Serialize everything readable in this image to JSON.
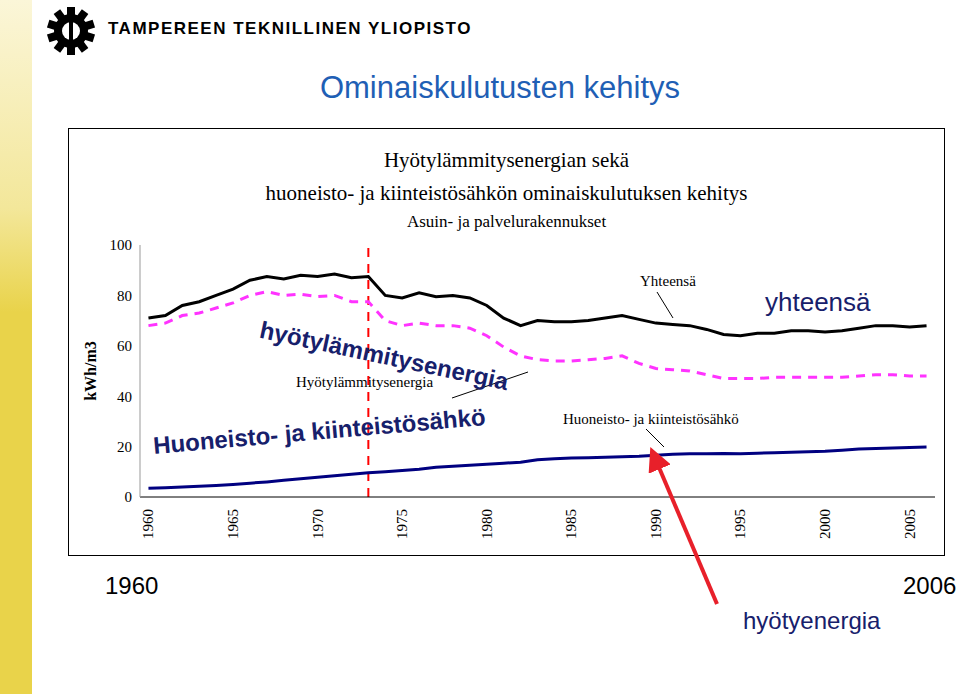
{
  "header": {
    "institution": "TAMPEREEN TEKNILLINEN YLIOPISTO",
    "title": "Ominaiskulutusten kehitys"
  },
  "chart_data": {
    "type": "line",
    "title": [
      "Hyötylämmitysenergian sekä",
      "huoneisto- ja kiinteistösähkön ominaiskulutuksen kehitys"
    ],
    "subtitle": "Asuin- ja palvelurakennukset",
    "ylabel": "kWh/m3",
    "x": [
      1960,
      1961,
      1962,
      1963,
      1964,
      1965,
      1966,
      1967,
      1968,
      1969,
      1970,
      1971,
      1972,
      1973,
      1974,
      1975,
      1976,
      1977,
      1978,
      1979,
      1980,
      1981,
      1982,
      1983,
      1984,
      1985,
      1986,
      1987,
      1988,
      1989,
      1990,
      1991,
      1992,
      1993,
      1994,
      1995,
      1996,
      1997,
      1998,
      1999,
      2000,
      2001,
      2002,
      2003,
      2004,
      2005,
      2006
    ],
    "xlim": [
      1959.5,
      2006.5
    ],
    "xticks": [
      1960,
      1965,
      1970,
      1975,
      1980,
      1985,
      1990,
      1995,
      2000,
      2005
    ],
    "ylim": [
      0,
      100
    ],
    "yticks": [
      0,
      20,
      40,
      60,
      80,
      100
    ],
    "grid": false,
    "series": [
      {
        "name": "Yhteensä",
        "color": "#000000",
        "line_style": "solid",
        "values": [
          71,
          72,
          76,
          77.5,
          80,
          82.5,
          86,
          87.5,
          86.5,
          88,
          87.5,
          88.5,
          87,
          87.5,
          80,
          79,
          81,
          79.5,
          80,
          79,
          76,
          71,
          68,
          70,
          69.5,
          69.5,
          70,
          71,
          72,
          70.5,
          69,
          68.5,
          68,
          66.5,
          64.5,
          64,
          65,
          65,
          66,
          66,
          65.5,
          66,
          67,
          68,
          68,
          67.5,
          68
        ]
      },
      {
        "name": "Hyötylämmitysenergia",
        "color": "#ff33ff",
        "line_style": "dashed",
        "values": [
          68,
          69,
          72,
          73,
          75,
          77,
          80,
          81.5,
          80,
          80.5,
          79.5,
          80,
          77.5,
          77.5,
          70,
          68,
          69,
          68,
          68,
          67,
          64,
          59.5,
          56,
          54.5,
          54,
          54,
          54.5,
          55,
          56,
          53,
          51,
          50.5,
          50,
          48.5,
          47,
          47,
          47,
          47.5,
          47.5,
          47.5,
          47.5,
          47.5,
          48,
          48.5,
          48.5,
          48,
          48
        ]
      },
      {
        "name": "Huoneisto- ja kiinteistösähkö",
        "color": "#000080",
        "line_style": "solid",
        "values": [
          3.5,
          3.7,
          4.0,
          4.3,
          4.6,
          5.0,
          5.5,
          6.0,
          6.6,
          7.2,
          7.8,
          8.4,
          9.0,
          9.6,
          10.0,
          10.5,
          11.0,
          11.8,
          12.2,
          12.6,
          13.0,
          13.4,
          13.8,
          14.8,
          15.2,
          15.5,
          15.6,
          15.8,
          16.0,
          16.2,
          16.6,
          17.0,
          17.2,
          17.2,
          17.3,
          17.2,
          17.4,
          17.6,
          17.8,
          18.0,
          18.2,
          18.6,
          19.0,
          19.2,
          19.4,
          19.6,
          19.8
        ]
      }
    ],
    "vertical_line": {
      "x": 1973,
      "color": "#ff0000",
      "line_style": "dashed"
    },
    "annotations": [
      {
        "text": "yhteensä"
      },
      {
        "text": "hyötylämmitysenergia"
      },
      {
        "text": "Huoneisto- ja kiinteistösähkö"
      },
      {
        "text": "1960"
      },
      {
        "text": "2006"
      },
      {
        "text": "hyötyenergia"
      }
    ]
  }
}
